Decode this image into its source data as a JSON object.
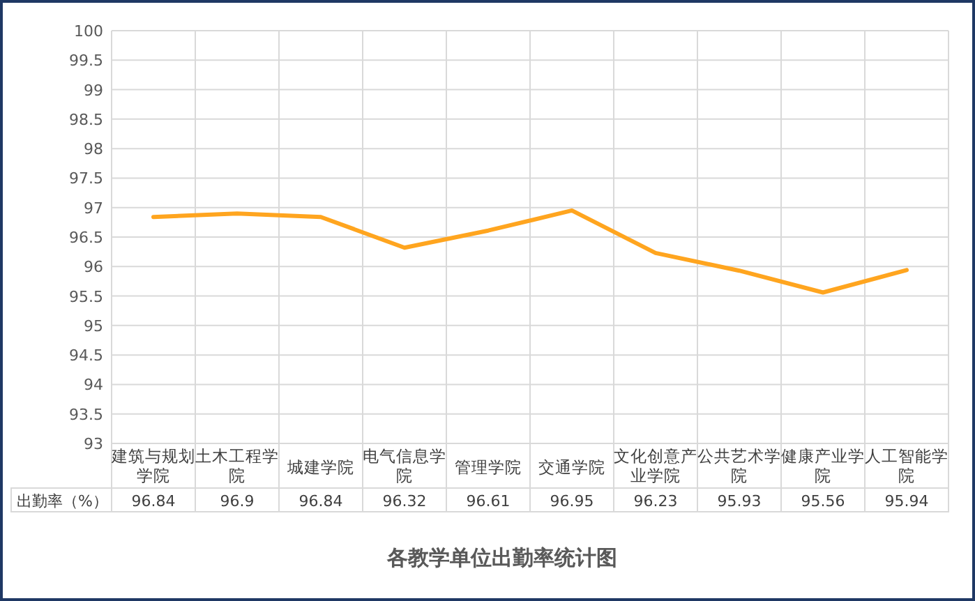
{
  "chart_data": {
    "type": "line",
    "title": "各教学单位出勤率统计图",
    "categories": [
      "建筑与规划学院",
      "土木工程学院",
      "城建学院",
      "电气信息学院",
      "管理学院",
      "交通学院",
      "文化创意产业学院",
      "公共艺术学院",
      "健康产业学院",
      "人工智能学院"
    ],
    "series": [
      {
        "name": "出勤率（%）",
        "color": "#ffa51f",
        "values": [
          96.84,
          96.9,
          96.84,
          96.32,
          96.61,
          96.95,
          96.23,
          95.93,
          95.56,
          95.94
        ]
      }
    ],
    "ylim": [
      93,
      100
    ],
    "yticks": [
      93,
      93.5,
      94,
      94.5,
      95,
      95.5,
      96,
      96.5,
      97,
      97.5,
      98,
      98.5,
      99,
      99.5,
      100
    ],
    "grid": true,
    "data_labels": true
  }
}
